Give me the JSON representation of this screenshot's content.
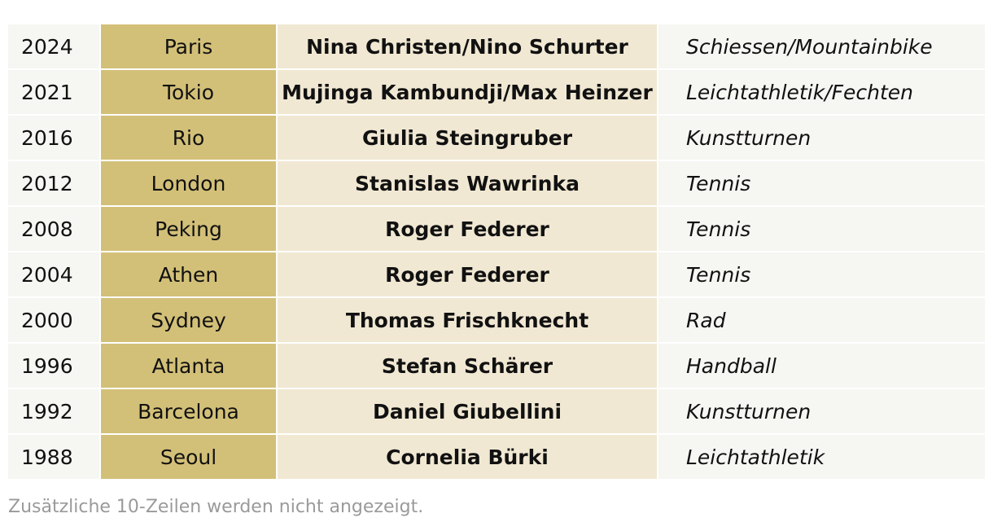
{
  "rows": [
    {
      "year": "2024",
      "city": "Paris",
      "athlete": "Nina Christen/Nino Schurter",
      "sport": "Schiessen/Mountainbike"
    },
    {
      "year": "2021",
      "city": "Tokio",
      "athlete": "Mujinga Kambundji/Max Heinzer",
      "sport": "Leichtathletik/Fechten"
    },
    {
      "year": "2016",
      "city": "Rio",
      "athlete": "Giulia Steingruber",
      "sport": "Kunstturnen"
    },
    {
      "year": "2012",
      "city": "London",
      "athlete": "Stanislas Wawrinka",
      "sport": "Tennis"
    },
    {
      "year": "2008",
      "city": "Peking",
      "athlete": "Roger Federer",
      "sport": "Tennis"
    },
    {
      "year": "2004",
      "city": "Athen",
      "athlete": "Roger Federer",
      "sport": "Tennis"
    },
    {
      "year": "2000",
      "city": "Sydney",
      "athlete": "Thomas Frischknecht",
      "sport": "Rad"
    },
    {
      "year": "1996",
      "city": "Atlanta",
      "athlete": "Stefan Schärer",
      "sport": "Handball"
    },
    {
      "year": "1992",
      "city": "Barcelona",
      "athlete": "Daniel Giubellini",
      "sport": "Kunstturnen"
    },
    {
      "year": "1988",
      "city": "Seoul",
      "athlete": "Cornelia Bürki",
      "sport": "Leichtathletik"
    }
  ],
  "footnote": "Zusätzliche 10-Zeilen werden nicht angezeigt.",
  "colors": {
    "city_column": "#d3c078",
    "athlete_column": "#f1e8d3",
    "plain_column": "#f6f6f3",
    "footnote_text": "#9a9a9a"
  }
}
